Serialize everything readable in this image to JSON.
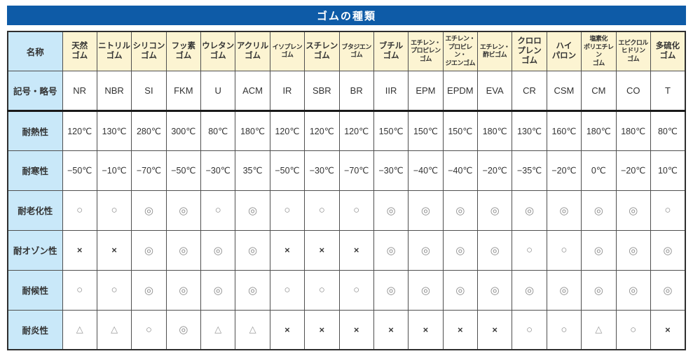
{
  "title": "ゴムの種類",
  "colors": {
    "title_bg": "#0e5ba7",
    "title_text": "#ffffff",
    "header_bg": "#fcf4d2",
    "label_bg": "#c9e8f9",
    "cell_bg": "#ffffff",
    "grid_border": "#4f4f4f",
    "outer_border": "#2e2e2e",
    "thick_divider": "#191919"
  },
  "table": {
    "corner_header": "名称",
    "row_keys": [
      "symbol",
      "heat",
      "cold",
      "aging",
      "ozone",
      "weather",
      "flame"
    ],
    "row_labels": {
      "symbol": "記号・略号",
      "heat": "耐熱性",
      "cold": "耐寒性",
      "aging": "耐老化性",
      "ozone": "耐オゾン性",
      "weather": "耐候性",
      "flame": "耐炎性"
    },
    "columns": [
      {
        "name_lines": [
          "天然",
          "ゴム"
        ],
        "size": "normal",
        "symbol": "NR",
        "heat": "120℃",
        "cold": "−50℃",
        "aging": "○",
        "ozone": "×",
        "weather": "○",
        "flame": "△"
      },
      {
        "name_lines": [
          "ニトリル",
          "ゴム"
        ],
        "size": "normal",
        "symbol": "NBR",
        "heat": "130℃",
        "cold": "−10℃",
        "aging": "○",
        "ozone": "×",
        "weather": "○",
        "flame": "△"
      },
      {
        "name_lines": [
          "シリコン",
          "ゴム"
        ],
        "size": "normal",
        "symbol": "SI",
        "heat": "280℃",
        "cold": "−70℃",
        "aging": "◎",
        "ozone": "◎",
        "weather": "◎",
        "flame": "○"
      },
      {
        "name_lines": [
          "フッ素",
          "ゴム"
        ],
        "size": "normal",
        "symbol": "FKM",
        "heat": "300℃",
        "cold": "−50℃",
        "aging": "◎",
        "ozone": "◎",
        "weather": "◎",
        "flame": "◎"
      },
      {
        "name_lines": [
          "ウレタン",
          "ゴム"
        ],
        "size": "normal",
        "symbol": "U",
        "heat": "80℃",
        "cold": "−30℃",
        "aging": "○",
        "ozone": "◎",
        "weather": "◎",
        "flame": "△"
      },
      {
        "name_lines": [
          "アクリル",
          "ゴム"
        ],
        "size": "normal",
        "symbol": "ACM",
        "heat": "180℃",
        "cold": "35℃",
        "aging": "◎",
        "ozone": "◎",
        "weather": "◎",
        "flame": "△"
      },
      {
        "name_lines": [
          "イソプレン",
          "ゴム"
        ],
        "size": "small",
        "symbol": "IR",
        "heat": "120℃",
        "cold": "−50℃",
        "aging": "○",
        "ozone": "×",
        "weather": "○",
        "flame": "×"
      },
      {
        "name_lines": [
          "スチレン",
          "ゴム"
        ],
        "size": "normal",
        "symbol": "SBR",
        "heat": "120℃",
        "cold": "−30℃",
        "aging": "○",
        "ozone": "×",
        "weather": "○",
        "flame": "×"
      },
      {
        "name_lines": [
          "ブタジエン",
          "ゴム"
        ],
        "size": "small",
        "symbol": "BR",
        "heat": "120℃",
        "cold": "−70℃",
        "aging": "○",
        "ozone": "×",
        "weather": "○",
        "flame": "×"
      },
      {
        "name_lines": [
          "ブチル",
          "ゴム"
        ],
        "size": "normal",
        "symbol": "IIR",
        "heat": "150℃",
        "cold": "−30℃",
        "aging": "◎",
        "ozone": "◎",
        "weather": "◎",
        "flame": "×"
      },
      {
        "name_lines": [
          "エチレン・",
          "プロピレン",
          "ゴム"
        ],
        "size": "small",
        "symbol": "EPM",
        "heat": "150℃",
        "cold": "−40℃",
        "aging": "◎",
        "ozone": "◎",
        "weather": "◎",
        "flame": "×"
      },
      {
        "name_lines": [
          "エチレン・",
          "プロピレン・",
          "ジエンゴム"
        ],
        "size": "small",
        "symbol": "EPDM",
        "heat": "150℃",
        "cold": "−40℃",
        "aging": "◎",
        "ozone": "◎",
        "weather": "◎",
        "flame": "×"
      },
      {
        "name_lines": [
          "エチレン・",
          "酢ビゴム"
        ],
        "size": "small",
        "symbol": "EVA",
        "heat": "180℃",
        "cold": "−20℃",
        "aging": "◎",
        "ozone": "◎",
        "weather": "◎",
        "flame": "×"
      },
      {
        "name_lines": [
          "クロロ",
          "プレン",
          "ゴム"
        ],
        "size": "normal",
        "symbol": "CR",
        "heat": "130℃",
        "cold": "−35℃",
        "aging": "◎",
        "ozone": "○",
        "weather": "◎",
        "flame": "○"
      },
      {
        "name_lines": [
          "ハイ",
          "パロン"
        ],
        "size": "normal",
        "symbol": "CSM",
        "heat": "160℃",
        "cold": "−20℃",
        "aging": "◎",
        "ozone": "○",
        "weather": "◎",
        "flame": "○"
      },
      {
        "name_lines": [
          "塩素化",
          "ポリエチレン",
          "ゴム"
        ],
        "size": "small",
        "symbol": "CM",
        "heat": "180℃",
        "cold": "0℃",
        "aging": "◎",
        "ozone": "◎",
        "weather": "◎",
        "flame": "△"
      },
      {
        "name_lines": [
          "エピクロル",
          "ヒドリン",
          "ゴム"
        ],
        "size": "small",
        "symbol": "CO",
        "heat": "180℃",
        "cold": "−20℃",
        "aging": "◎",
        "ozone": "◎",
        "weather": "◎",
        "flame": "○"
      },
      {
        "name_lines": [
          "多硫化",
          "ゴム"
        ],
        "size": "normal",
        "symbol": "T",
        "heat": "80℃",
        "cold": "10℃",
        "aging": "○",
        "ozone": "◎",
        "weather": "◎",
        "flame": "×"
      }
    ]
  }
}
